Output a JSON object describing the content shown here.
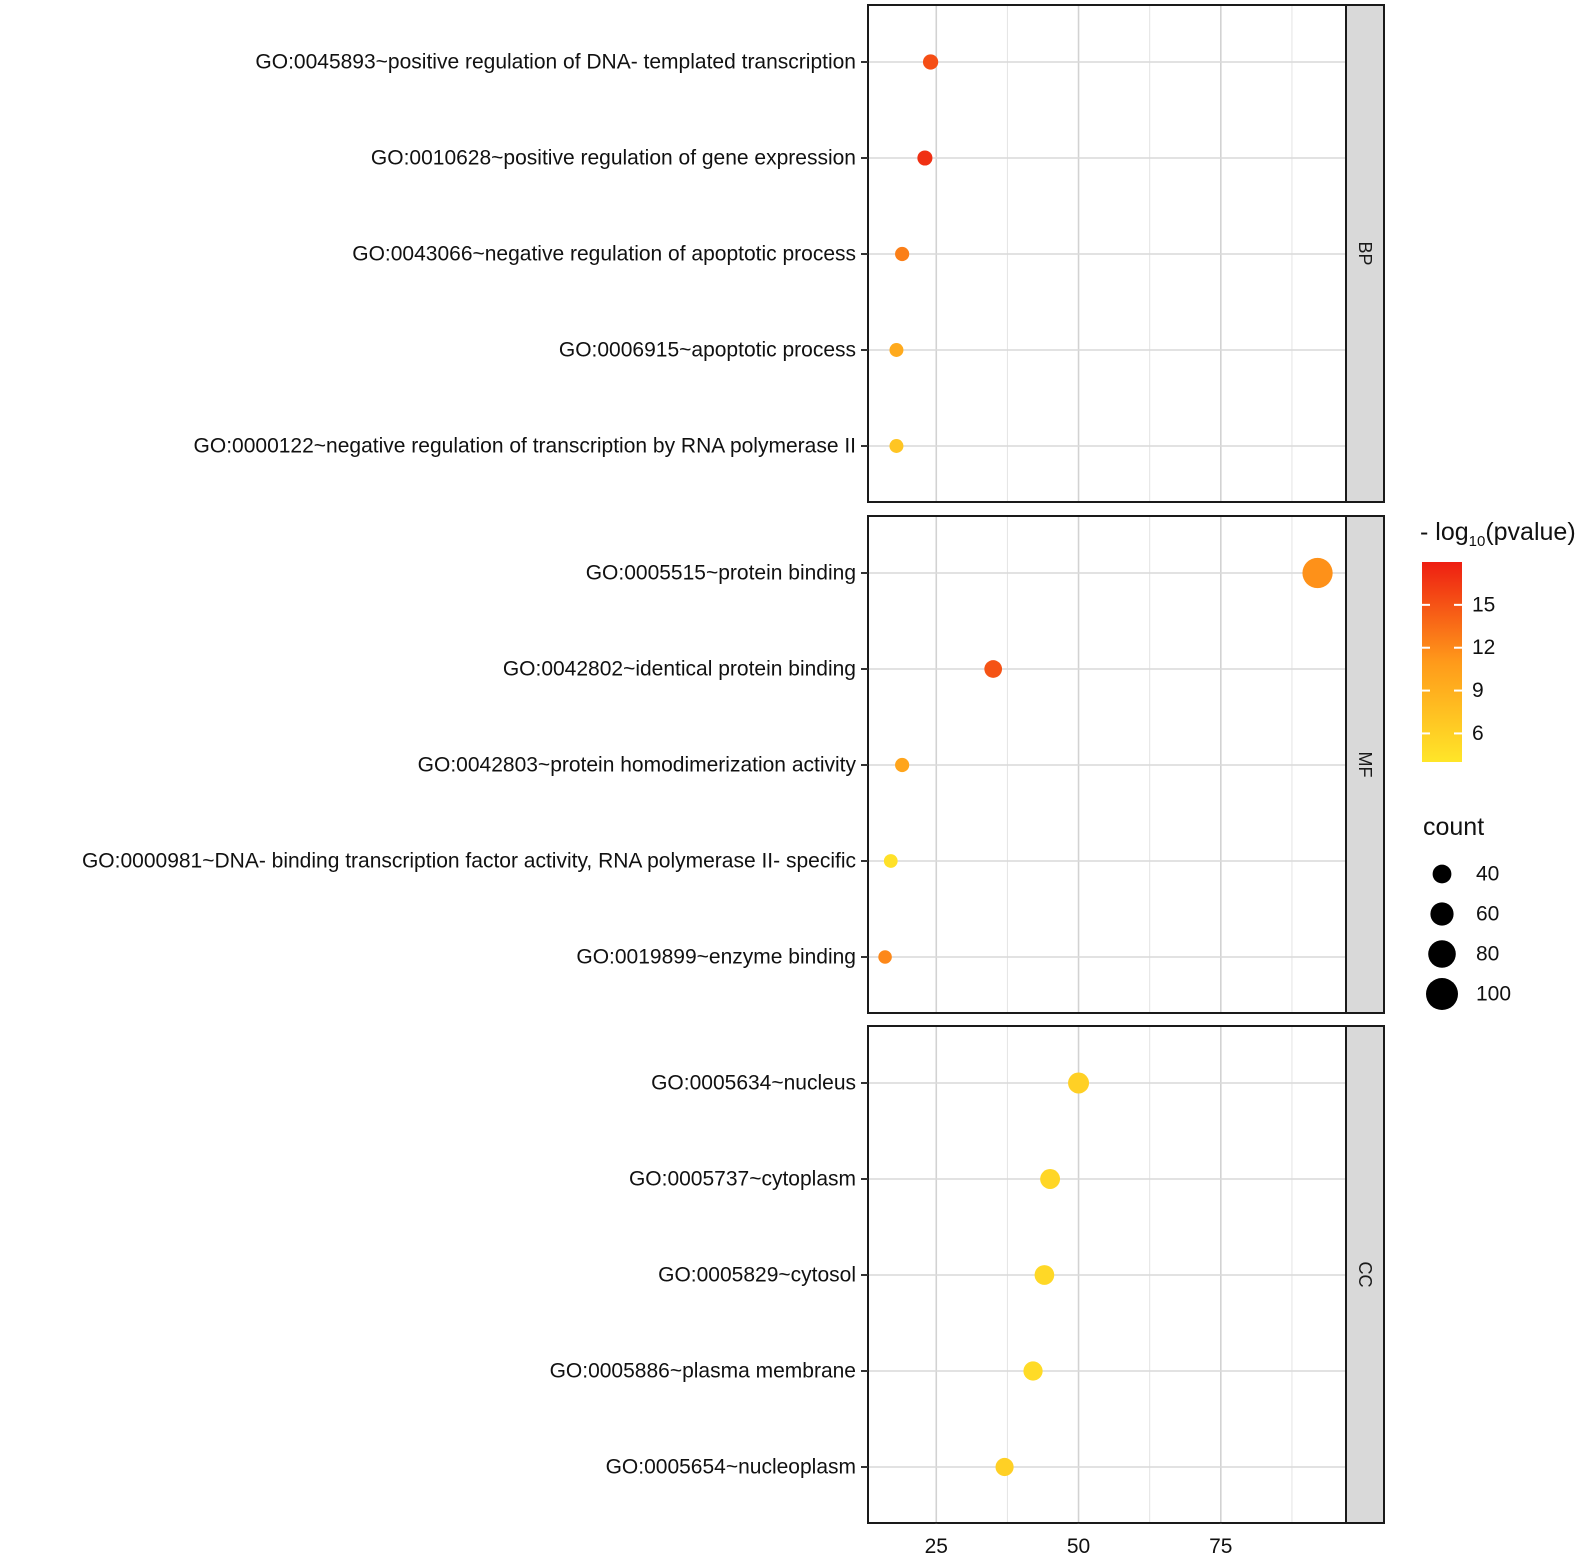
{
  "chart_data": {
    "type": "scatter",
    "title": "",
    "xlabel": "",
    "ylabel": "",
    "xlim": [
      13,
      97
    ],
    "x_ticks": [
      "25",
      "50",
      "75"
    ],
    "x_tick_values": [
      25,
      50,
      75
    ],
    "panels": [
      {
        "name": "BP",
        "terms": [
          {
            "label": "GO:0045893~positive regulation of DNA- templated transcription",
            "count": 24,
            "pvalue": 15.3
          },
          {
            "label": "GO:0010628~positive regulation of gene expression",
            "count": 23,
            "pvalue": 17.0
          },
          {
            "label": "GO:0043066~negative regulation of apoptotic process",
            "count": 19,
            "pvalue": 12.5
          },
          {
            "label": "GO:0006915~apoptotic process",
            "count": 18,
            "pvalue": 9.5
          },
          {
            "label": "GO:0000122~negative regulation of transcription by RNA polymerase II",
            "count": 18,
            "pvalue": 7.0
          }
        ]
      },
      {
        "name": "MF",
        "terms": [
          {
            "label": "GO:0005515~protein binding",
            "count": 92,
            "pvalue": 11.5
          },
          {
            "label": "GO:0042802~identical protein binding",
            "count": 35,
            "pvalue": 15.0
          },
          {
            "label": "GO:0042803~protein homodimerization activity",
            "count": 19,
            "pvalue": 10.0
          },
          {
            "label": "GO:0000981~DNA- binding transcription factor activity, RNA polymerase II- specific",
            "count": 17,
            "pvalue": 4.5
          },
          {
            "label": "GO:0019899~enzyme binding",
            "count": 16,
            "pvalue": 12.0
          }
        ]
      },
      {
        "name": "CC",
        "terms": [
          {
            "label": "GO:0005634~nucleus",
            "count": 50,
            "pvalue": 6.0
          },
          {
            "label": "GO:0005737~cytoplasm",
            "count": 45,
            "pvalue": 5.5
          },
          {
            "label": "GO:0005829~cytosol",
            "count": 44,
            "pvalue": 5.3
          },
          {
            "label": "GO:0005886~plasma membrane",
            "count": 42,
            "pvalue": 5.0
          },
          {
            "label": "GO:0005654~nucleoplasm",
            "count": 37,
            "pvalue": 6.0
          }
        ]
      }
    ],
    "color_legend": {
      "title_prefix": "- log",
      "title_sub": "10",
      "title_suffix": "(pvalue)",
      "ticks": [
        "15",
        "12",
        "9",
        "6"
      ],
      "tick_values": [
        15,
        12,
        9,
        6
      ],
      "range": [
        4.0,
        18.0
      ],
      "colors": [
        "#ffe629",
        "#ff9a1a",
        "#ee1e12"
      ]
    },
    "size_legend": {
      "title": "count",
      "entries": [
        "40",
        "60",
        "80",
        "100"
      ],
      "entry_values": [
        40,
        60,
        80,
        100
      ]
    }
  }
}
